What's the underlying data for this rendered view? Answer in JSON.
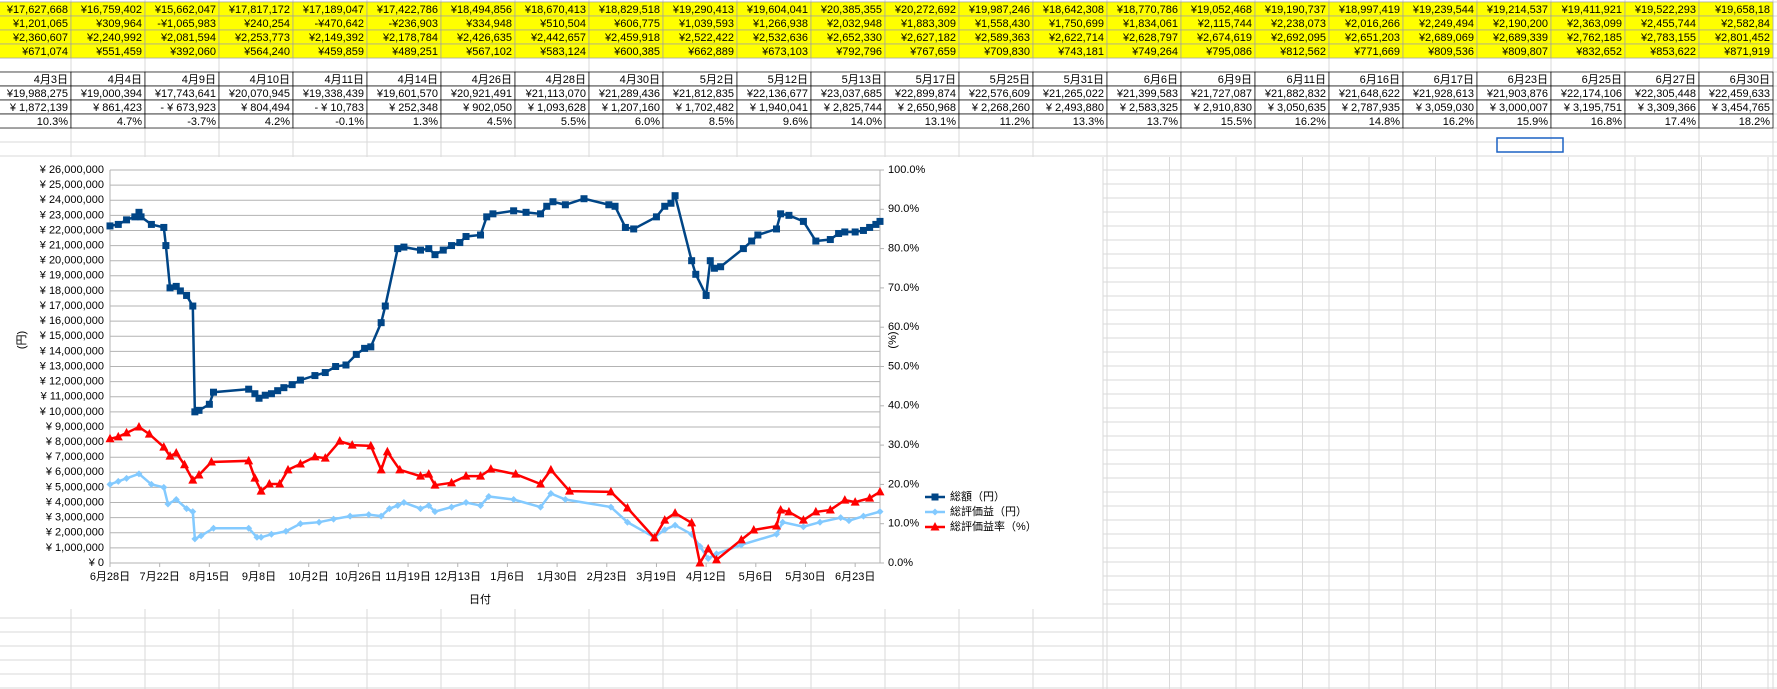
{
  "sheet": {
    "yellow_rows": [
      [
        "¥17,627,668",
        "¥16,759,402",
        "¥15,662,047",
        "¥17,817,172",
        "¥17,189,047",
        "¥17,422,786",
        "¥18,494,856",
        "¥18,670,413",
        "¥18,829,518",
        "¥19,290,413",
        "¥19,604,041",
        "¥20,385,355",
        "¥20,272,692",
        "¥19,987,246",
        "¥18,642,308",
        "¥18,770,786",
        "¥19,052,468",
        "¥19,190,737",
        "¥18,997,419",
        "¥19,239,544",
        "¥19,214,537",
        "¥19,411,921",
        "¥19,522,293",
        "¥19,658,18"
      ],
      [
        "¥1,201,065",
        "¥309,964",
        "-¥1,065,983",
        "¥240,254",
        "-¥470,642",
        "-¥236,903",
        "¥334,948",
        "¥510,504",
        "¥606,775",
        "¥1,039,593",
        "¥1,266,938",
        "¥2,032,948",
        "¥1,883,309",
        "¥1,558,430",
        "¥1,750,699",
        "¥1,834,061",
        "¥2,115,744",
        "¥2,238,073",
        "¥2,016,266",
        "¥2,249,494",
        "¥2,190,200",
        "¥2,363,099",
        "¥2,455,744",
        "¥2,582,84"
      ],
      [
        "¥2,360,607",
        "¥2,240,992",
        "¥2,081,594",
        "¥2,253,773",
        "¥2,149,392",
        "¥2,178,784",
        "¥2,426,635",
        "¥2,442,657",
        "¥2,459,918",
        "¥2,522,422",
        "¥2,532,636",
        "¥2,652,330",
        "¥2,627,182",
        "¥2,589,363",
        "¥2,622,714",
        "¥2,628,797",
        "¥2,674,619",
        "¥2,692,095",
        "¥2,651,203",
        "¥2,689,069",
        "¥2,689,339",
        "¥2,762,185",
        "¥2,783,155",
        "¥2,801,452"
      ],
      [
        "¥671,074",
        "¥551,459",
        "¥392,060",
        "¥564,240",
        "¥459,859",
        "¥489,251",
        "¥567,102",
        "¥583,124",
        "¥600,385",
        "¥662,889",
        "¥673,103",
        "¥792,796",
        "¥767,659",
        "¥709,830",
        "¥743,181",
        "¥749,264",
        "¥795,086",
        "¥812,562",
        "¥771,669",
        "¥809,536",
        "¥809,807",
        "¥832,652",
        "¥853,622",
        "¥871,919"
      ]
    ],
    "table_rows": [
      [
        "4月3日",
        "4月4日",
        "4月9日",
        "4月10日",
        "4月11日",
        "4月14日",
        "4月26日",
        "4月28日",
        "4月30日",
        "5月2日",
        "5月12日",
        "5月13日",
        "5月17日",
        "5月25日",
        "5月31日",
        "6月6日",
        "6月9日",
        "6月11日",
        "6月16日",
        "6月17日",
        "6月23日",
        "6月25日",
        "6月27日",
        "6月30日"
      ],
      [
        "¥19,988,275",
        "¥19,000,394",
        "¥17,743,641",
        "¥20,070,945",
        "¥19,338,439",
        "¥19,601,570",
        "¥20,921,491",
        "¥21,113,070",
        "¥21,289,436",
        "¥21,812,835",
        "¥22,136,677",
        "¥23,037,685",
        "¥22,899,874",
        "¥22,576,609",
        "¥21,265,022",
        "¥21,399,583",
        "¥21,727,087",
        "¥21,882,832",
        "¥21,648,622",
        "¥21,928,613",
        "¥21,903,876",
        "¥22,174,106",
        "¥22,305,448",
        "¥22,459,633"
      ],
      [
        "¥ 1,872,139",
        "¥ 861,423",
        "- ¥ 673,923",
        "¥ 804,494",
        "- ¥ 10,783",
        "¥ 252,348",
        "¥ 902,050",
        "¥ 1,093,628",
        "¥ 1,207,160",
        "¥ 1,702,482",
        "¥ 1,940,041",
        "¥ 2,825,744",
        "¥ 2,650,968",
        "¥ 2,268,260",
        "¥ 2,493,880",
        "¥ 2,583,325",
        "¥ 2,910,830",
        "¥ 3,050,635",
        "¥ 2,787,935",
        "¥ 3,059,030",
        "¥ 3,000,007",
        "¥ 3,195,751",
        "¥ 3,309,366",
        "¥ 3,454,765"
      ],
      [
        "10.3%",
        "4.7%",
        "-3.7%",
        "4.2%",
        "-0.1%",
        "1.3%",
        "4.5%",
        "5.5%",
        "6.0%",
        "8.5%",
        "9.6%",
        "14.0%",
        "13.1%",
        "11.2%",
        "13.3%",
        "13.7%",
        "15.5%",
        "16.2%",
        "14.8%",
        "16.2%",
        "15.9%",
        "16.8%",
        "17.4%",
        "18.2%"
      ]
    ],
    "negative_color": "#ff0000"
  },
  "chart_data": {
    "type": "line",
    "xlabel": "日付",
    "ylabel": "(円)",
    "y2label": "(%)",
    "legend": "right",
    "grid": true,
    "xlim": [
      0,
      372
    ],
    "xticks": [
      {
        "value": 0,
        "label": "6月28日"
      },
      {
        "value": 24,
        "label": "7月22日"
      },
      {
        "value": 48,
        "label": "8月15日"
      },
      {
        "value": 72,
        "label": "9月8日"
      },
      {
        "value": 96,
        "label": "10月2日"
      },
      {
        "value": 120,
        "label": "10月26日"
      },
      {
        "value": 144,
        "label": "11月19日"
      },
      {
        "value": 168,
        "label": "12月13日"
      },
      {
        "value": 192,
        "label": "1月6日"
      },
      {
        "value": 216,
        "label": "1月30日"
      },
      {
        "value": 240,
        "label": "2月23日"
      },
      {
        "value": 264,
        "label": "3月19日"
      },
      {
        "value": 288,
        "label": "4月12日"
      },
      {
        "value": 312,
        "label": "5月6日"
      },
      {
        "value": 336,
        "label": "5月30日"
      },
      {
        "value": 360,
        "label": "6月23日"
      }
    ],
    "ylim": [
      0,
      26000000
    ],
    "yticks": [
      {
        "value": 0,
        "label": "¥ 0"
      },
      {
        "value": 1000000,
        "label": "¥ 1,000,000"
      },
      {
        "value": 2000000,
        "label": "¥ 2,000,000"
      },
      {
        "value": 3000000,
        "label": "¥ 3,000,000"
      },
      {
        "value": 4000000,
        "label": "¥ 4,000,000"
      },
      {
        "value": 5000000,
        "label": "¥ 5,000,000"
      },
      {
        "value": 6000000,
        "label": "¥ 6,000,000"
      },
      {
        "value": 7000000,
        "label": "¥ 7,000,000"
      },
      {
        "value": 8000000,
        "label": "¥ 8,000,000"
      },
      {
        "value": 9000000,
        "label": "¥ 9,000,000"
      },
      {
        "value": 10000000,
        "label": "¥ 10,000,000"
      },
      {
        "value": 11000000,
        "label": "¥ 11,000,000"
      },
      {
        "value": 12000000,
        "label": "¥ 12,000,000"
      },
      {
        "value": 13000000,
        "label": "¥ 13,000,000"
      },
      {
        "value": 14000000,
        "label": "¥ 14,000,000"
      },
      {
        "value": 15000000,
        "label": "¥ 15,000,000"
      },
      {
        "value": 16000000,
        "label": "¥ 16,000,000"
      },
      {
        "value": 17000000,
        "label": "¥ 17,000,000"
      },
      {
        "value": 18000000,
        "label": "¥ 18,000,000"
      },
      {
        "value": 19000000,
        "label": "¥ 19,000,000"
      },
      {
        "value": 20000000,
        "label": "¥ 20,000,000"
      },
      {
        "value": 21000000,
        "label": "¥ 21,000,000"
      },
      {
        "value": 22000000,
        "label": "¥ 22,000,000"
      },
      {
        "value": 23000000,
        "label": "¥ 23,000,000"
      },
      {
        "value": 24000000,
        "label": "¥ 24,000,000"
      },
      {
        "value": 25000000,
        "label": "¥ 25,000,000"
      },
      {
        "value": 26000000,
        "label": "¥ 26,000,000"
      }
    ],
    "y2lim": [
      0,
      100
    ],
    "y2ticks": [
      {
        "value": 0,
        "label": "0.0%"
      },
      {
        "value": 10,
        "label": "10.0%"
      },
      {
        "value": 20,
        "label": "20.0%"
      },
      {
        "value": 30,
        "label": "30.0%"
      },
      {
        "value": 40,
        "label": "40.0%"
      },
      {
        "value": 50,
        "label": "50.0%"
      },
      {
        "value": 60,
        "label": "60.0%"
      },
      {
        "value": 70,
        "label": "70.0%"
      },
      {
        "value": 80,
        "label": "80.0%"
      },
      {
        "value": 90,
        "label": "90.0%"
      },
      {
        "value": 100,
        "label": "100.0%"
      }
    ],
    "series": [
      {
        "name": "総額（円）",
        "color": "#004586",
        "marker": "square",
        "x": [
          0,
          4,
          8,
          12,
          14,
          15,
          20,
          26,
          27,
          29,
          32,
          34,
          37,
          40,
          41,
          43,
          48,
          50,
          67,
          70,
          72,
          75,
          78,
          81,
          84,
          88,
          92,
          99,
          104,
          109,
          114,
          119,
          123,
          126,
          131,
          133,
          139,
          142,
          150,
          154,
          157,
          161,
          165,
          169,
          172,
          179,
          182,
          185,
          195,
          201,
          208,
          211,
          214,
          220,
          229,
          241,
          244,
          249,
          253,
          264,
          268,
          271,
          273,
          281,
          283,
          288,
          290,
          292,
          295,
          306,
          310,
          313,
          322,
          324,
          328,
          335,
          341,
          348,
          352,
          355,
          360,
          364,
          367,
          370,
          372
        ],
        "values": [
          22300000,
          22400000,
          22700000,
          22900000,
          23200000,
          22900000,
          22400000,
          22200000,
          21000000,
          18200000,
          18300000,
          18000000,
          17700000,
          17000000,
          10000000,
          10100000,
          10500000,
          11300000,
          11500000,
          11200000,
          10900000,
          11100000,
          11200000,
          11400000,
          11600000,
          11800000,
          12100000,
          12400000,
          12600000,
          13000000,
          13100000,
          13800000,
          14200000,
          14300000,
          15900000,
          17000000,
          20800000,
          20900000,
          20700000,
          20800000,
          20400000,
          20700000,
          21000000,
          21200000,
          21600000,
          21700000,
          22900000,
          23100000,
          23300000,
          23200000,
          23100000,
          23600000,
          23900000,
          23700000,
          24100000,
          23700000,
          23600000,
          22200000,
          22100000,
          22900000,
          23600000,
          23800000,
          24300000,
          20000000,
          19100000,
          17700000,
          20000000,
          19500000,
          19600000,
          20800000,
          21300000,
          21700000,
          22100000,
          23100000,
          23000000,
          22600000,
          21300000,
          21400000,
          21800000,
          21900000,
          21900000,
          22000000,
          22200000,
          22400000,
          22600000
        ]
      },
      {
        "name": "総評価益（円）",
        "color": "#83caff",
        "marker": "diamond",
        "x": [
          0,
          4,
          8,
          14,
          20,
          26,
          28,
          32,
          37,
          40,
          41,
          44,
          50,
          67,
          71,
          73,
          78,
          85,
          92,
          101,
          108,
          116,
          125,
          131,
          135,
          139,
          142,
          150,
          154,
          157,
          165,
          172,
          179,
          183,
          195,
          208,
          213,
          220,
          242,
          250,
          263,
          268,
          273,
          281,
          285,
          289,
          293,
          305,
          322,
          325,
          335,
          343,
          353,
          357,
          364,
          372
        ],
        "values": [
          5200000,
          5400000,
          5600000,
          5900000,
          5200000,
          5000000,
          3900000,
          4200000,
          3600000,
          3400000,
          1600000,
          1800000,
          2300000,
          2300000,
          1700000,
          1700000,
          1900000,
          2100000,
          2600000,
          2700000,
          2900000,
          3100000,
          3200000,
          3100000,
          3600000,
          3800000,
          4000000,
          3600000,
          3800000,
          3400000,
          3700000,
          4000000,
          3800000,
          4400000,
          4200000,
          3700000,
          4600000,
          4200000,
          3700000,
          2700000,
          1700000,
          2200000,
          2500000,
          1900000,
          1100000,
          300000,
          600000,
          1200000,
          1900000,
          2700000,
          2400000,
          2700000,
          3000000,
          2800000,
          3100000,
          3400000
        ]
      },
      {
        "name": "総評価益率（%）",
        "color": "#ff0000",
        "marker": "triangle",
        "axis": "y2",
        "x": [
          0,
          4,
          8,
          14,
          19,
          26,
          29,
          32,
          36,
          40,
          43,
          49,
          67,
          70,
          73,
          77,
          82,
          86,
          92,
          99,
          104,
          111,
          117,
          126,
          131,
          134,
          140,
          150,
          154,
          157,
          165,
          172,
          179,
          184,
          196,
          208,
          213,
          222,
          242,
          250,
          263,
          268,
          273,
          281,
          285,
          289,
          293,
          305,
          311,
          322,
          324,
          328,
          335,
          341,
          348,
          355,
          360,
          367,
          372
        ],
        "values": [
          31.6,
          32.1,
          33.1,
          34.6,
          32.8,
          29.5,
          27.2,
          28.0,
          25.0,
          21.1,
          22.4,
          25.7,
          26.0,
          21.6,
          18.3,
          20.1,
          20.1,
          23.7,
          25.2,
          27.0,
          26.7,
          31.0,
          30.0,
          29.8,
          23.7,
          28.3,
          23.7,
          22.1,
          22.6,
          19.8,
          20.4,
          22.1,
          22.1,
          23.9,
          22.6,
          20.1,
          23.7,
          18.3,
          18.1,
          14.0,
          6.4,
          10.9,
          12.7,
          10.2,
          0,
          3.6,
          0.8,
          5.9,
          8.4,
          9.4,
          13.5,
          13.0,
          10.9,
          13.0,
          13.5,
          16.0,
          15.5,
          16.5,
          18.1
        ]
      }
    ]
  }
}
